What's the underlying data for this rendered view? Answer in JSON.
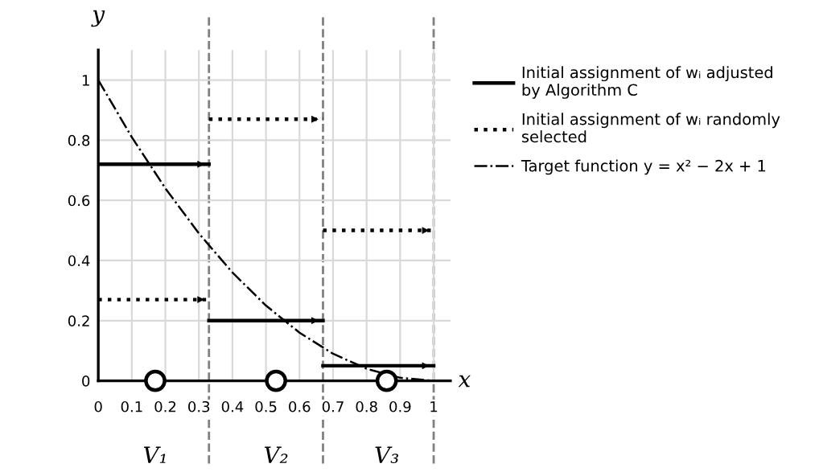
{
  "chart_data": {
    "type": "line",
    "xlabel": "x",
    "ylabel": "y",
    "xlim": [
      0,
      1.05
    ],
    "ylim": [
      0,
      1.1
    ],
    "xticks": [
      0,
      0.1,
      0.2,
      0.3,
      0.4,
      0.5,
      0.6,
      0.7,
      0.8,
      0.9,
      1
    ],
    "yticks": [
      0,
      0.2,
      0.4,
      0.6,
      0.8,
      1
    ],
    "grid": true,
    "legend": "right",
    "series": [
      {
        "name": "Initial assignment of wᵢ adjusted\nby Algorithm C",
        "color": "#000000",
        "line_style": "solid",
        "x": [
          0,
          0.33
        ],
        "values": [
          0.72,
          0.72
        ]
      },
      {
        "name": "Initial assignment of wᵢ randomly\nselected",
        "color": "#000000",
        "line_style": "dotted",
        "x": [
          0,
          0.33
        ],
        "values": [
          0.27,
          0.27
        ]
      },
      {
        "name": "Target function y = x² − 2x + 1",
        "color": "#000000",
        "line_style": "dashdot",
        "x": [
          0,
          0.1,
          0.2,
          0.3,
          0.4,
          0.5,
          0.6,
          0.7,
          0.8,
          0.9,
          1
        ],
        "values": [
          1,
          0.81,
          0.64,
          0.49,
          0.36,
          0.25,
          0.16,
          0.09,
          0.04,
          0.01,
          0
        ]
      },
      {
        "color": "#000000",
        "line_style": "solid",
        "x": [
          0.33,
          0.67
        ],
        "values": [
          0.2,
          0.2
        ]
      },
      {
        "color": "#000000",
        "line_style": "solid",
        "x": [
          0.67,
          1
        ],
        "values": [
          0.05,
          0.05
        ]
      },
      {
        "color": "#000000",
        "line_style": "dotted",
        "x": [
          0.33,
          0.67
        ],
        "values": [
          0.87,
          0.87
        ]
      },
      {
        "color": "#000000",
        "line_style": "dotted",
        "x": [
          0.67,
          1
        ],
        "values": [
          0.5,
          0.5
        ]
      },
      {
        "type": "scatter",
        "color": "#000000",
        "marker": "circle",
        "x": [
          0.17,
          0.53,
          0.86
        ],
        "values": [
          0,
          0,
          0
        ]
      }
    ],
    "ref_lines": [
      {
        "axis": "x",
        "value": 0.33,
        "color": "#808080",
        "line_style": "dashed"
      },
      {
        "axis": "x",
        "value": 0.67,
        "color": "#808080",
        "line_style": "dashed"
      },
      {
        "axis": "x",
        "value": 1,
        "color": "#808080",
        "line_style": "dashed"
      }
    ],
    "annotations": [
      {
        "text": "V₁",
        "x": 0.17,
        "y": 0
      },
      {
        "text": "V₂",
        "x": 0.53,
        "y": 0
      },
      {
        "text": "V₃",
        "x": 0.86,
        "y": 0
      }
    ]
  }
}
